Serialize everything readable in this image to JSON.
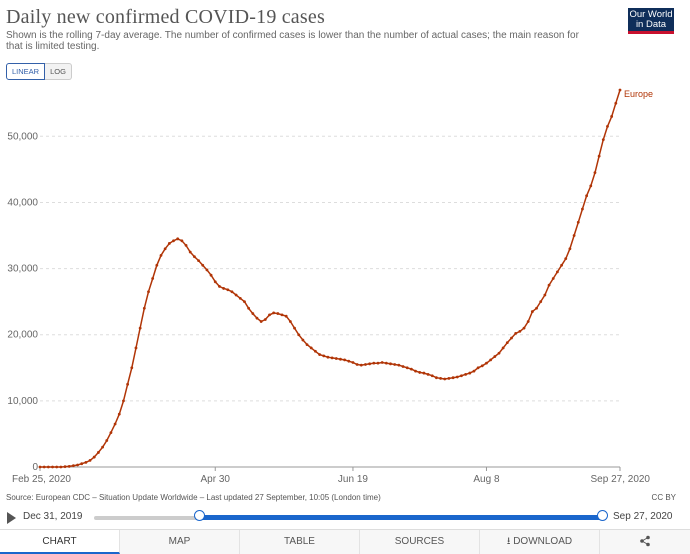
{
  "header": {
    "title": "Daily new confirmed COVID-19 cases",
    "subtitle": "Shown is the rolling 7-day average. The number of confirmed cases is lower than the number of actual cases; the main reason for that is limited testing.",
    "logo_line1": "Our World",
    "logo_line2": "in Data"
  },
  "scale_toggle": {
    "linear": "LINEAR",
    "log": "LOG",
    "selected": "linear"
  },
  "footer": {
    "source": "Source: European CDC – Situation Update Worldwide – Last updated 27 September, 10:05 (London time)",
    "license": "CC BY"
  },
  "timeline": {
    "start_label": "Dec 31, 2019",
    "end_label": "Sep 27, 2020"
  },
  "tabs": {
    "chart": "CHART",
    "map": "MAP",
    "table": "TABLE",
    "sources": "SOURCES",
    "download": "DOWNLOAD",
    "share_icon": "share-icon"
  },
  "colors": {
    "series": "#b13507",
    "accent": "#1a66cc",
    "logo_bg": "#0f2e5a",
    "logo_bar": "#c8102e"
  },
  "chart_data": {
    "type": "line",
    "title": "Daily new confirmed COVID-19 cases",
    "xlabel": "",
    "ylabel": "",
    "ylim": [
      0,
      57000
    ],
    "y_ticks": [
      0,
      10000,
      20000,
      30000,
      40000,
      50000
    ],
    "y_tick_labels": [
      "0",
      "10,000",
      "20,000",
      "30,000",
      "40,000",
      "50,000"
    ],
    "x_ticks": [
      "Feb 25, 2020",
      "Apr 30",
      "Jun 19",
      "Aug 8",
      "Sep 27, 2020"
    ],
    "grid": "horizontal dashed",
    "series": [
      {
        "name": "Europe",
        "x_range": [
          "Feb 25, 2020",
          "Sep 27, 2020"
        ],
        "values": [
          0,
          0,
          0,
          0,
          0,
          0,
          50,
          100,
          200,
          300,
          500,
          700,
          1000,
          1500,
          2200,
          3000,
          4000,
          5200,
          6500,
          8000,
          10000,
          12500,
          15000,
          18000,
          21000,
          24000,
          26500,
          28500,
          30500,
          32000,
          33000,
          33800,
          34200,
          34500,
          34200,
          33500,
          32500,
          31800,
          31200,
          30500,
          29800,
          29000,
          28000,
          27300,
          27000,
          26800,
          26500,
          26000,
          25500,
          25000,
          24000,
          23200,
          22500,
          22000,
          22300,
          23000,
          23300,
          23200,
          23000,
          22800,
          22000,
          21000,
          20000,
          19200,
          18500,
          18000,
          17500,
          17000,
          16800,
          16600,
          16500,
          16400,
          16300,
          16200,
          16000,
          15800,
          15500,
          15400,
          15500,
          15600,
          15700,
          15700,
          15800,
          15700,
          15600,
          15500,
          15400,
          15200,
          15000,
          14800,
          14500,
          14300,
          14200,
          14000,
          13800,
          13500,
          13400,
          13300,
          13400,
          13500,
          13600,
          13800,
          14000,
          14200,
          14500,
          15000,
          15300,
          15700,
          16200,
          16700,
          17200,
          18000,
          18800,
          19500,
          20200,
          20500,
          21000,
          22000,
          23500,
          24000,
          25000,
          26000,
          27500,
          28500,
          29500,
          30500,
          31500,
          33000,
          35000,
          37000,
          39000,
          41000,
          42500,
          44500,
          47000,
          49500,
          51500,
          53000,
          55000,
          57000
        ]
      }
    ]
  }
}
